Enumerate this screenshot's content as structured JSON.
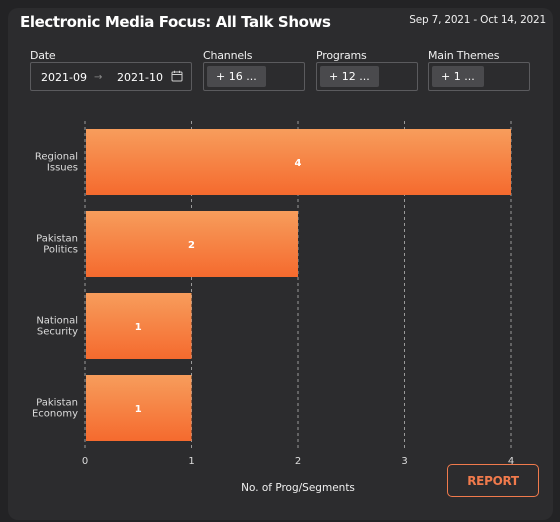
{
  "title": "Electronic Media Focus: All Talk Shows",
  "date_range_label": "Sep 7, 2021 - Oct 14, 2021",
  "filters": {
    "date": {
      "label": "Date",
      "start": "2021-09",
      "end": "2021-10",
      "separator": "→"
    },
    "channels": {
      "label": "Channels",
      "chip": "+ 16 ..."
    },
    "programs": {
      "label": "Programs",
      "chip": "+ 12 ..."
    },
    "themes": {
      "label": "Main Themes",
      "chip": "+ 1 ..."
    }
  },
  "report_button": "REPORT",
  "colors": {
    "bar_top": "#f79d5c",
    "bar_bottom": "#f56a2e",
    "accent": "#f07a4c",
    "background": "#2c2c2e"
  },
  "chart_data": {
    "type": "bar",
    "orientation": "horizontal",
    "categories": [
      [
        "Regional",
        "Issues"
      ],
      [
        "Pakistan",
        "Politics"
      ],
      [
        "National",
        "Security"
      ],
      [
        "Pakistan",
        "Economy"
      ]
    ],
    "values": [
      4,
      2,
      1,
      1
    ],
    "xlabel": "No. of Prog/Segments",
    "xlim": [
      0,
      4
    ],
    "xticks": [
      0,
      1,
      2,
      3,
      4
    ],
    "grid": "vertical-dashed"
  }
}
